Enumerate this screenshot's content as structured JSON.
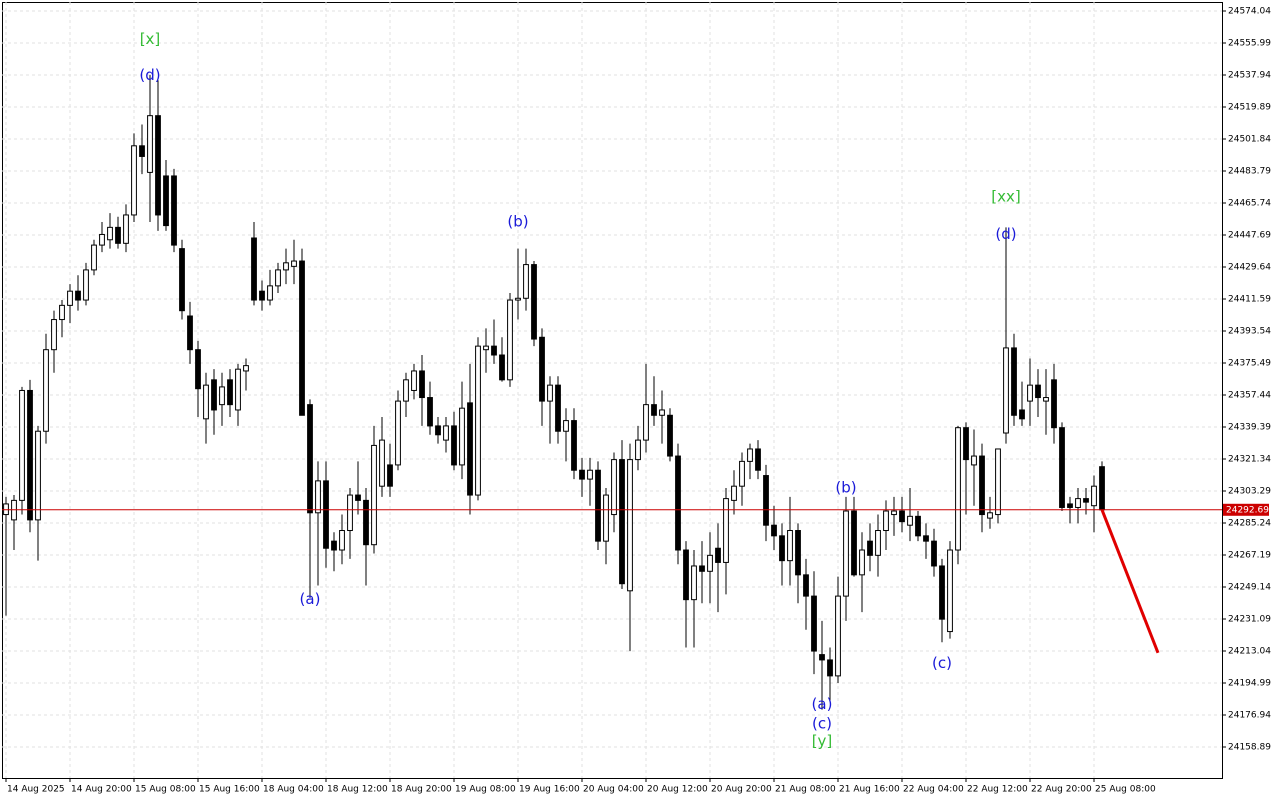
{
  "chart_data": {
    "type": "candlestick",
    "ylim": [
      24141.4,
      24579.12
    ],
    "yticks": [
      24574.04,
      24555.99,
      24537.94,
      24519.89,
      24501.84,
      24483.79,
      24465.74,
      24447.69,
      24429.64,
      24411.59,
      24393.54,
      24375.49,
      24357.44,
      24339.39,
      24321.34,
      24303.29,
      24285.24,
      24267.19,
      24249.14,
      24231.09,
      24213.04,
      24194.99,
      24176.94,
      24158.89
    ],
    "xlim": [
      -0.5,
      152
    ],
    "xticks": [
      {
        "value": 0,
        "label": "14 Aug 2025"
      },
      {
        "value": 8,
        "label": "14 Aug 20:00"
      },
      {
        "value": 16,
        "label": "15 Aug 08:00"
      },
      {
        "value": 24,
        "label": "15 Aug 16:00"
      },
      {
        "value": 32,
        "label": "18 Aug 04:00"
      },
      {
        "value": 40,
        "label": "18 Aug 12:00"
      },
      {
        "value": 48,
        "label": "18 Aug 20:00"
      },
      {
        "value": 56,
        "label": "19 Aug 08:00"
      },
      {
        "value": 64,
        "label": "19 Aug 16:00"
      },
      {
        "value": 72,
        "label": "20 Aug 04:00"
      },
      {
        "value": 80,
        "label": "20 Aug 12:00"
      },
      {
        "value": 88,
        "label": "20 Aug 20:00"
      },
      {
        "value": 96,
        "label": "21 Aug 08:00"
      },
      {
        "value": 104,
        "label": "21 Aug 16:00"
      },
      {
        "value": 112,
        "label": "22 Aug 04:00"
      },
      {
        "value": 120,
        "label": "22 Aug 12:00"
      },
      {
        "value": 128,
        "label": "22 Aug 20:00"
      },
      {
        "value": 136,
        "label": "25 Aug 08:00"
      }
    ],
    "grid": true,
    "up_color": "#ffffff",
    "down_color": "#000000",
    "candles": [
      [
        24290,
        24300,
        24233,
        24296
      ],
      [
        24287,
        24301,
        24270,
        24298
      ],
      [
        24298,
        24362,
        24290,
        24360
      ],
      [
        24360,
        24366,
        24280,
        24287
      ],
      [
        24287,
        24340,
        24264,
        24337
      ],
      [
        24337,
        24392,
        24330,
        24383
      ],
      [
        24383,
        24405,
        24370,
        24400
      ],
      [
        24400,
        24411,
        24390,
        24408
      ],
      [
        24408,
        24420,
        24398,
        24416
      ],
      [
        24416,
        24425,
        24405,
        24411
      ],
      [
        24411,
        24432,
        24408,
        24428
      ],
      [
        24428,
        24445,
        24425,
        24442
      ],
      [
        24442,
        24455,
        24438,
        24448
      ],
      [
        24445,
        24460,
        24440,
        24452
      ],
      [
        24452,
        24458,
        24440,
        24443
      ],
      [
        24443,
        24465,
        24438,
        24459
      ],
      [
        24459,
        24505,
        24455,
        24498
      ],
      [
        24498,
        24510,
        24482,
        24492
      ],
      [
        24483,
        24538,
        24455,
        24515
      ],
      [
        24515,
        24535,
        24450,
        24459
      ],
      [
        24481,
        24490,
        24450,
        24453
      ],
      [
        24481,
        24485,
        24438,
        24442
      ],
      [
        24440,
        24445,
        24400,
        24405
      ],
      [
        24402,
        24410,
        24375,
        24383
      ],
      [
        24383,
        24388,
        24345,
        24361
      ],
      [
        24344,
        24370,
        24330,
        24363
      ],
      [
        24366,
        24372,
        24335,
        24349
      ],
      [
        24352,
        24370,
        24340,
        24362
      ],
      [
        24366,
        24372,
        24345,
        24352
      ],
      [
        24349,
        24375,
        24340,
        24372
      ],
      [
        24371,
        24378,
        24360,
        24374
      ],
      [
        24446,
        24455,
        24408,
        24411
      ],
      [
        24416,
        24422,
        24405,
        24411
      ],
      [
        24411,
        24428,
        24408,
        24419
      ],
      [
        24419,
        24432,
        24415,
        24428
      ],
      [
        24428,
        24440,
        24420,
        24432
      ],
      [
        24430,
        24445,
        24420,
        24433
      ],
      [
        24433,
        24440,
        24346,
        24346
      ],
      [
        24352,
        24355,
        24243,
        24291
      ],
      [
        24291,
        24320,
        24250,
        24309
      ],
      [
        24309,
        24320,
        24260,
        24271
      ],
      [
        24275,
        24280,
        24258,
        24270
      ],
      [
        24270,
        24290,
        24262,
        24281
      ],
      [
        24281,
        24305,
        24265,
        24301
      ],
      [
        24301,
        24320,
        24290,
        24298
      ],
      [
        24298,
        24305,
        24250,
        24273
      ],
      [
        24273,
        24340,
        24268,
        24329
      ],
      [
        24306,
        24345,
        24300,
        24332
      ],
      [
        24318,
        24330,
        24300,
        24306
      ],
      [
        24318,
        24360,
        24315,
        24354
      ],
      [
        24354,
        24370,
        24345,
        24366
      ],
      [
        24360,
        24375,
        24355,
        24371
      ],
      [
        24371,
        24380,
        24340,
        24356
      ],
      [
        24356,
        24365,
        24335,
        24340
      ],
      [
        24340,
        24345,
        24330,
        24335
      ],
      [
        24332,
        24345,
        24325,
        24340
      ],
      [
        24340,
        24348,
        24315,
        24318
      ],
      [
        24318,
        24365,
        24310,
        24350
      ],
      [
        24353,
        24375,
        24290,
        24301
      ],
      [
        24301,
        24390,
        24298,
        24385
      ],
      [
        24383,
        24395,
        24370,
        24385
      ],
      [
        24385,
        24400,
        24375,
        24380
      ],
      [
        24380,
        24390,
        24365,
        24366
      ],
      [
        24366,
        24415,
        24362,
        24411
      ],
      [
        24411,
        24440,
        24400,
        24412
      ],
      [
        24412,
        24440,
        24405,
        24431
      ],
      [
        24431,
        24433,
        24385,
        24389
      ],
      [
        24390,
        24395,
        24340,
        24354
      ],
      [
        24354,
        24368,
        24330,
        24363
      ],
      [
        24363,
        24368,
        24330,
        24337
      ],
      [
        24337,
        24350,
        24320,
        24343
      ],
      [
        24343,
        24350,
        24310,
        24315
      ],
      [
        24315,
        24322,
        24300,
        24310
      ],
      [
        24310,
        24322,
        24295,
        24315
      ],
      [
        24315,
        24320,
        24270,
        24275
      ],
      [
        24275,
        24305,
        24262,
        24301
      ],
      [
        24290,
        24325,
        24280,
        24321
      ],
      [
        24321,
        24332,
        24248,
        24251
      ],
      [
        24247,
        24330,
        24213,
        24321
      ],
      [
        24321,
        24340,
        24315,
        24332
      ],
      [
        24332,
        24375,
        24325,
        24352
      ],
      [
        24352,
        24368,
        24340,
        24346
      ],
      [
        24346,
        24360,
        24330,
        24349
      ],
      [
        24346,
        24350,
        24320,
        24323
      ],
      [
        24323,
        24330,
        24262,
        24270
      ],
      [
        24270,
        24275,
        24215,
        24242
      ],
      [
        24242,
        24270,
        24215,
        24261
      ],
      [
        24261,
        24275,
        24240,
        24258
      ],
      [
        24258,
        24280,
        24240,
        24267
      ],
      [
        24271,
        24285,
        24235,
        24263
      ],
      [
        24263,
        24305,
        24245,
        24299
      ],
      [
        24298,
        24315,
        24290,
        24306
      ],
      [
        24306,
        24325,
        24295,
        24320
      ],
      [
        24320,
        24330,
        24310,
        24327
      ],
      [
        24327,
        24332,
        24310,
        24315
      ],
      [
        24312,
        24318,
        24275,
        24284
      ],
      [
        24284,
        24295,
        24270,
        24278
      ],
      [
        24278,
        24285,
        24250,
        24264
      ],
      [
        24264,
        24300,
        24250,
        24281
      ],
      [
        24281,
        24285,
        24240,
        24256
      ],
      [
        24256,
        24265,
        24225,
        24244
      ],
      [
        24244,
        24258,
        24200,
        24213
      ],
      [
        24211,
        24230,
        24180,
        24208
      ],
      [
        24208,
        24215,
        24185,
        24199
      ],
      [
        24199,
        24255,
        24195,
        24244
      ],
      [
        24244,
        24300,
        24230,
        24292
      ],
      [
        24292,
        24300,
        24255,
        24256
      ],
      [
        24256,
        24280,
        24235,
        24270
      ],
      [
        24275,
        24285,
        24258,
        24267
      ],
      [
        24267,
        24290,
        24255,
        24281
      ],
      [
        24281,
        24298,
        24270,
        24292
      ],
      [
        24290,
        24300,
        24278,
        24292
      ],
      [
        24292,
        24300,
        24280,
        24286
      ],
      [
        24284,
        24305,
        24275,
        24289
      ],
      [
        24289,
        24292,
        24275,
        24278
      ],
      [
        24278,
        24285,
        24265,
        24275
      ],
      [
        24275,
        24282,
        24255,
        24261
      ],
      [
        24261,
        24265,
        24218,
        24231
      ],
      [
        24224,
        24275,
        24220,
        24270
      ],
      [
        24270,
        24340,
        24262,
        24339
      ],
      [
        24339,
        24342,
        24290,
        24321
      ],
      [
        24318,
        24338,
        24295,
        24323
      ],
      [
        24323,
        24330,
        24280,
        24290
      ],
      [
        24288,
        24300,
        24282,
        24291
      ],
      [
        24290,
        24325,
        24285,
        24327
      ],
      [
        24336,
        24452,
        24330,
        24384
      ],
      [
        24384,
        24392,
        24340,
        24346
      ],
      [
        24349,
        24365,
        24340,
        24344
      ],
      [
        24354,
        24378,
        24340,
        24363
      ],
      [
        24363,
        24372,
        24345,
        24356
      ],
      [
        24354,
        24372,
        24335,
        24356
      ],
      [
        24366,
        24375,
        24330,
        24339
      ],
      [
        24339,
        24342,
        24292,
        24294
      ],
      [
        24296,
        24300,
        24285,
        24294
      ],
      [
        24294,
        24305,
        24285,
        24299
      ],
      [
        24299,
        24305,
        24290,
        24297
      ],
      [
        24295,
        24312,
        24280,
        24306
      ],
      [
        24317,
        24320,
        24292,
        24292.69
      ]
    ],
    "last_price": 24292.69,
    "last_price_color": "#cc0000",
    "forecast": {
      "x": [
        137,
        144
      ],
      "values": [
        24292.69,
        24212
      ],
      "color": "#e00000"
    },
    "annotations": [
      {
        "text": "[x]",
        "x": 18,
        "y": 24558,
        "color": "#33bb33"
      },
      {
        "text": "(d)",
        "x": 18,
        "y": 24537.6,
        "color": "#1a1ad8"
      },
      {
        "text": "(a)",
        "x": 38,
        "y": 24242,
        "color": "#1a1ad8"
      },
      {
        "text": "(b)",
        "x": 64,
        "y": 24455,
        "color": "#1a1ad8"
      },
      {
        "text": "(b)",
        "x": 105,
        "y": 24305,
        "color": "#1a1ad8"
      },
      {
        "text": "(a)",
        "x": 102,
        "y": 24183,
        "color": "#1a1ad8"
      },
      {
        "text": "(c)",
        "x": 102,
        "y": 24172,
        "color": "#1a1ad8"
      },
      {
        "text": "[y]",
        "x": 102,
        "y": 24162,
        "color": "#33bb33"
      },
      {
        "text": "(c)",
        "x": 117,
        "y": 24206,
        "color": "#1a1ad8"
      },
      {
        "text": "[xx]",
        "x": 125,
        "y": 24469,
        "color": "#33bb33"
      },
      {
        "text": "(d)",
        "x": 125,
        "y": 24448,
        "color": "#1a1ad8"
      }
    ]
  }
}
